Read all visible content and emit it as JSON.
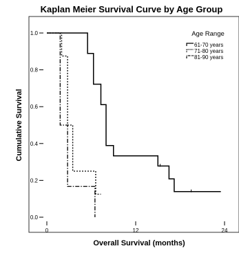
{
  "chart_data": {
    "type": "line",
    "step": true,
    "title": "Kaplan Meier Survival Curve by Age Group",
    "xlabel": "Overall Survival (months)",
    "ylabel": "Cumulative Survival",
    "xlim": [
      0,
      24
    ],
    "ylim": [
      0,
      1
    ],
    "x_ticks": [
      0,
      12,
      24
    ],
    "y_ticks": [
      0.0,
      0.2,
      0.4,
      0.6,
      0.8,
      1.0
    ],
    "x_tick_labels": [
      "0",
      "12",
      "24"
    ],
    "y_tick_labels": [
      "0.0",
      "0.2",
      "0.4",
      "0.6",
      "0.8",
      "1.0"
    ],
    "grid": false,
    "legend": {
      "title": "Age Range",
      "placement": "top-right",
      "entries": [
        "61-70 years",
        "71-80 years",
        "81-90 years"
      ]
    },
    "series": [
      {
        "name": "61-70 years",
        "style": "solid",
        "color": "#000000",
        "steps": [
          [
            0,
            1.0
          ],
          [
            5.5,
            0.889
          ],
          [
            6.3,
            0.722
          ],
          [
            7.3,
            0.611
          ],
          [
            8.0,
            0.389
          ],
          [
            9.0,
            0.333
          ],
          [
            15.0,
            0.278
          ],
          [
            16.5,
            0.208
          ],
          [
            17.2,
            0.139
          ],
          [
            23.5,
            0.139
          ]
        ],
        "censored": [
          [
            15.3,
            0.278
          ],
          [
            19.5,
            0.139
          ]
        ]
      },
      {
        "name": "71-80 years",
        "style": "dotted",
        "color": "#000000",
        "steps": [
          [
            0,
            1.0
          ],
          [
            2.0,
            0.875
          ],
          [
            2.8,
            0.5
          ],
          [
            3.5,
            0.25
          ],
          [
            6.6,
            0.125
          ],
          [
            7.3,
            0.125
          ]
        ],
        "censored": []
      },
      {
        "name": "81-90 years",
        "style": "dashdot",
        "color": "#000000",
        "steps": [
          [
            0,
            1.0
          ],
          [
            1.8,
            0.5
          ],
          [
            2.8,
            0.167
          ],
          [
            6.3,
            0.167
          ],
          [
            6.5,
            0.0
          ]
        ],
        "censored": []
      }
    ]
  }
}
